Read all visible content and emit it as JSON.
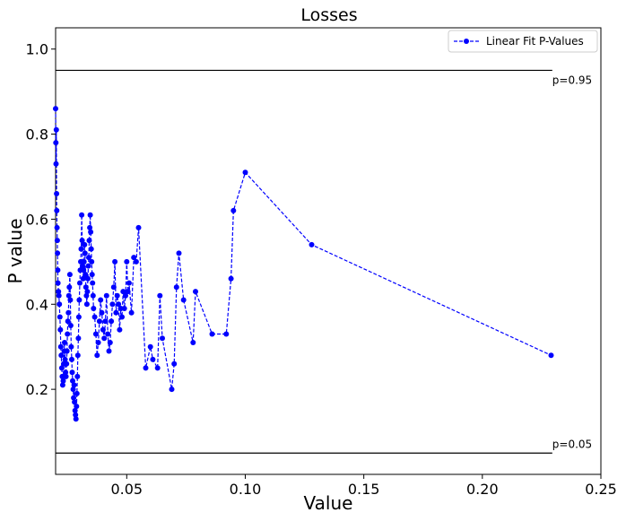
{
  "chart_data": {
    "type": "line",
    "title": "Losses",
    "xlabel": "Value",
    "ylabel": "P value",
    "xlim": [
      0.02,
      0.25
    ],
    "ylim": [
      0.0,
      1.05
    ],
    "xticks": [
      0.05,
      0.1,
      0.15,
      0.2,
      0.25
    ],
    "xtick_labels": [
      "0.05",
      "0.10",
      "0.15",
      "0.20",
      "0.25"
    ],
    "yticks": [
      0.2,
      0.4,
      0.6,
      0.8,
      1.0
    ],
    "ytick_labels": [
      "0.2",
      "0.4",
      "0.6",
      "0.8",
      "1.0"
    ],
    "grid": false,
    "legend_position": "top-right",
    "reference_lines": [
      {
        "y": 0.95,
        "label": "p=0.95",
        "color": "#000000"
      },
      {
        "y": 0.05,
        "label": "p=0.05",
        "color": "#000000"
      }
    ],
    "series": [
      {
        "name": "Linear Fit P-Values",
        "color": "#0000ff",
        "style": "dashed",
        "marker": "circle",
        "x": [
          0.02,
          0.0201,
          0.0202,
          0.0203,
          0.0204,
          0.0205,
          0.0206,
          0.0207,
          0.0208,
          0.0209,
          0.021,
          0.0212,
          0.0214,
          0.0216,
          0.0218,
          0.022,
          0.0222,
          0.0224,
          0.0226,
          0.0228,
          0.023,
          0.0232,
          0.0234,
          0.0236,
          0.0238,
          0.024,
          0.0242,
          0.0244,
          0.0246,
          0.0248,
          0.025,
          0.0252,
          0.0254,
          0.0256,
          0.0258,
          0.026,
          0.0262,
          0.0264,
          0.0266,
          0.0268,
          0.027,
          0.0272,
          0.0274,
          0.0276,
          0.0278,
          0.028,
          0.0282,
          0.0284,
          0.0286,
          0.0288,
          0.029,
          0.0292,
          0.0294,
          0.0296,
          0.0298,
          0.03,
          0.0302,
          0.0304,
          0.0306,
          0.0308,
          0.031,
          0.0312,
          0.0314,
          0.0316,
          0.0318,
          0.032,
          0.0322,
          0.0324,
          0.0326,
          0.0328,
          0.033,
          0.0332,
          0.0334,
          0.0336,
          0.0338,
          0.034,
          0.0342,
          0.0344,
          0.0346,
          0.0348,
          0.035,
          0.0352,
          0.0354,
          0.0356,
          0.0358,
          0.036,
          0.0365,
          0.037,
          0.0375,
          0.038,
          0.0385,
          0.039,
          0.0395,
          0.04,
          0.0405,
          0.041,
          0.0415,
          0.042,
          0.0425,
          0.043,
          0.0435,
          0.044,
          0.0445,
          0.045,
          0.0455,
          0.046,
          0.0465,
          0.047,
          0.0475,
          0.048,
          0.0485,
          0.049,
          0.0495,
          0.05,
          0.0505,
          0.051,
          0.052,
          0.053,
          0.054,
          0.055,
          0.058,
          0.06,
          0.061,
          0.063,
          0.064,
          0.065,
          0.069,
          0.07,
          0.071,
          0.072,
          0.074,
          0.078,
          0.079,
          0.086,
          0.092,
          0.094,
          0.095,
          0.1,
          0.128,
          0.229
        ],
        "y": [
          0.86,
          0.78,
          0.73,
          0.81,
          0.66,
          0.62,
          0.58,
          0.55,
          0.52,
          0.48,
          0.45,
          0.43,
          0.42,
          0.4,
          0.37,
          0.34,
          0.3,
          0.28,
          0.25,
          0.23,
          0.21,
          0.22,
          0.26,
          0.29,
          0.31,
          0.27,
          0.24,
          0.23,
          0.26,
          0.29,
          0.33,
          0.36,
          0.38,
          0.42,
          0.44,
          0.47,
          0.41,
          0.35,
          0.3,
          0.27,
          0.24,
          0.22,
          0.2,
          0.18,
          0.21,
          0.17,
          0.15,
          0.14,
          0.13,
          0.16,
          0.19,
          0.23,
          0.28,
          0.32,
          0.37,
          0.41,
          0.45,
          0.48,
          0.5,
          0.53,
          0.61,
          0.55,
          0.49,
          0.46,
          0.48,
          0.5,
          0.54,
          0.52,
          0.47,
          0.44,
          0.42,
          0.4,
          0.43,
          0.46,
          0.49,
          0.51,
          0.55,
          0.58,
          0.61,
          0.57,
          0.53,
          0.5,
          0.47,
          0.45,
          0.42,
          0.39,
          0.37,
          0.33,
          0.28,
          0.31,
          0.36,
          0.41,
          0.38,
          0.34,
          0.32,
          0.36,
          0.42,
          0.33,
          0.29,
          0.31,
          0.36,
          0.4,
          0.44,
          0.5,
          0.38,
          0.42,
          0.4,
          0.34,
          0.39,
          0.37,
          0.43,
          0.39,
          0.42,
          0.5,
          0.43,
          0.45,
          0.38,
          0.51,
          0.5,
          0.58,
          0.25,
          0.3,
          0.27,
          0.25,
          0.42,
          0.32,
          0.2,
          0.26,
          0.44,
          0.52,
          0.41,
          0.31,
          0.43,
          0.33,
          0.33,
          0.46,
          0.62,
          0.71,
          0.54,
          0.28
        ]
      }
    ]
  }
}
